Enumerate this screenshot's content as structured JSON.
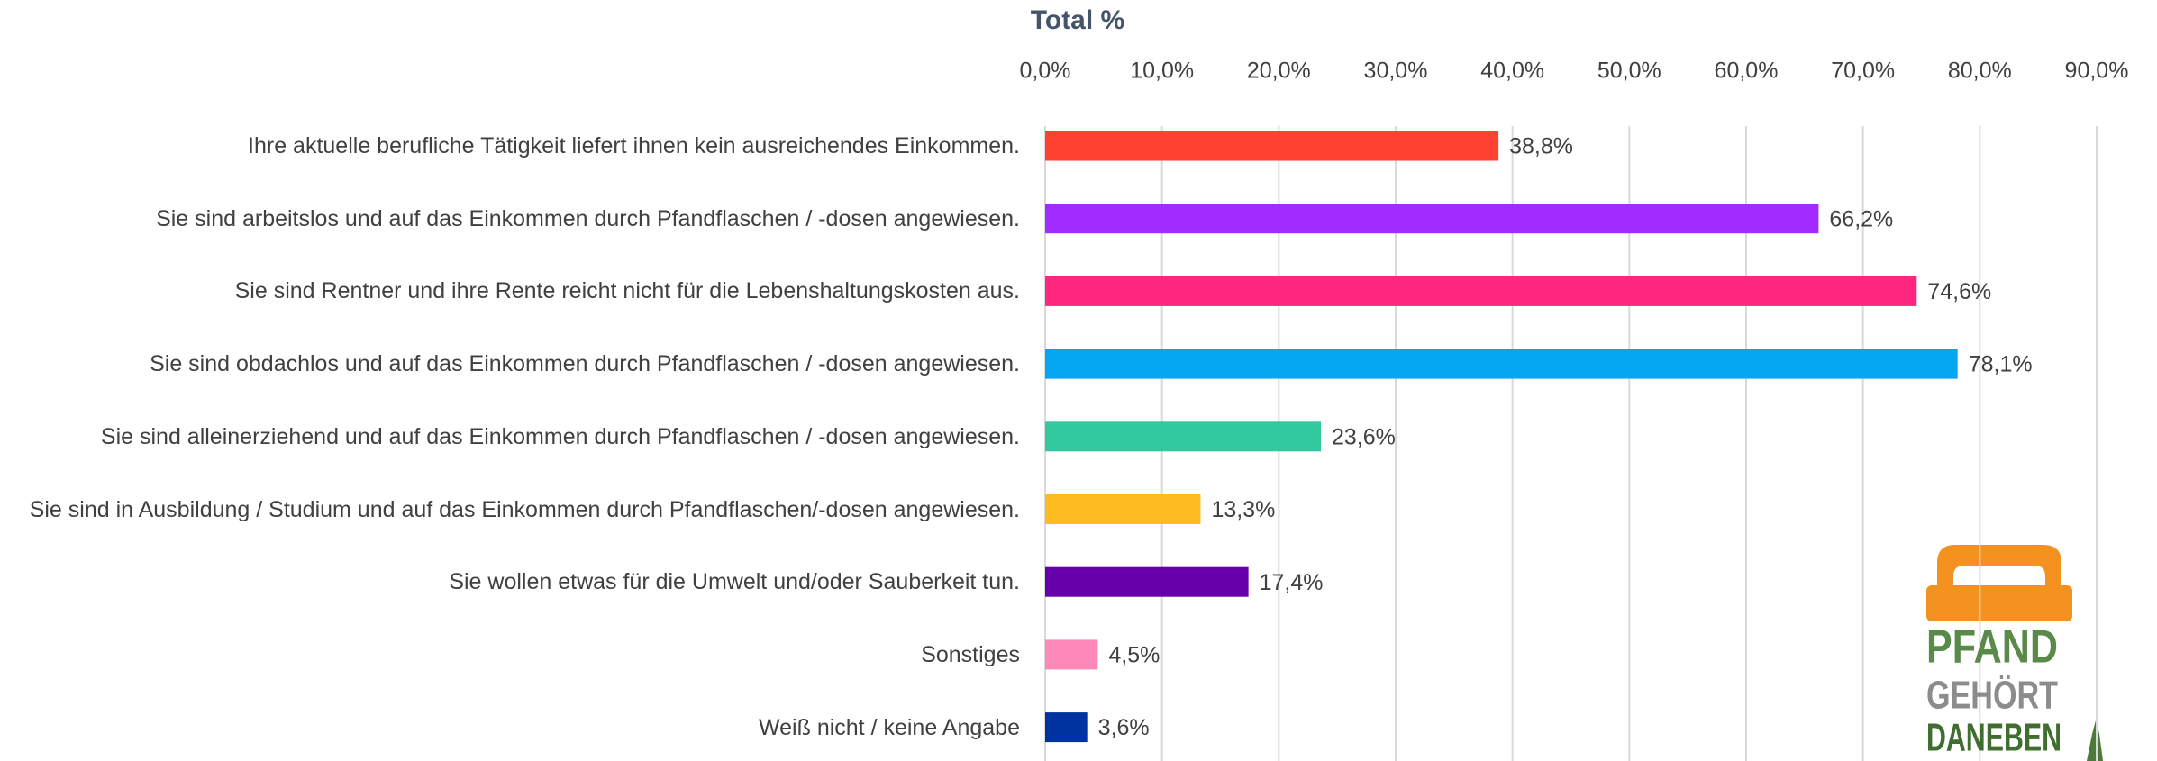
{
  "chart_data": {
    "type": "bar",
    "orientation": "horizontal",
    "title": "Total %",
    "categories": [
      "Ihre aktuelle berufliche Tätigkeit liefert ihnen kein ausreichendes Einkommen.",
      "Sie sind arbeitslos und auf das Einkommen durch Pfandflaschen / -dosen angewiesen.",
      "Sie sind Rentner und ihre Rente reicht nicht für die Lebenshaltungskosten aus.",
      "Sie sind obdachlos und auf das Einkommen durch Pfandflaschen / -dosen angewiesen.",
      "Sie sind alleinerziehend und auf das Einkommen durch Pfandflaschen / -dosen angewiesen.",
      "Sie sind in Ausbildung / Studium und auf das Einkommen durch Pfandflaschen/-dosen angewiesen.",
      "Sie wollen etwas für die Umwelt und/oder Sauberkeit tun.",
      "Sonstiges",
      "Weiß nicht / keine Angabe"
    ],
    "values": [
      38.8,
      66.2,
      74.6,
      78.1,
      23.6,
      13.3,
      17.4,
      4.5,
      3.6
    ],
    "value_labels": [
      "38,8%",
      "66,2%",
      "74,6%",
      "78,1%",
      "23,6%",
      "13,3%",
      "17,4%",
      "4,5%",
      "3,6%"
    ],
    "colors": [
      "#ff4230",
      "#a22bff",
      "#ff2680",
      "#05a6f0",
      "#32c8a0",
      "#ffbb22",
      "#6600aa",
      "#ff88bb",
      "#0033a0"
    ],
    "xlim": [
      0,
      90
    ],
    "xticks": [
      {
        "value": 0,
        "label": "0,0%"
      },
      {
        "value": 10,
        "label": "10,0%"
      },
      {
        "value": 20,
        "label": "20,0%"
      },
      {
        "value": 30,
        "label": "30,0%"
      },
      {
        "value": 40,
        "label": "40,0%"
      },
      {
        "value": 50,
        "label": "50,0%"
      },
      {
        "value": 60,
        "label": "60,0%"
      },
      {
        "value": 70,
        "label": "70,0%"
      },
      {
        "value": 80,
        "label": "80,0%"
      },
      {
        "value": 90,
        "label": "90,0%"
      }
    ],
    "grid": true
  },
  "logo": {
    "lines": [
      "PFAND",
      "GEHÖRT",
      "DANEBEN"
    ]
  }
}
